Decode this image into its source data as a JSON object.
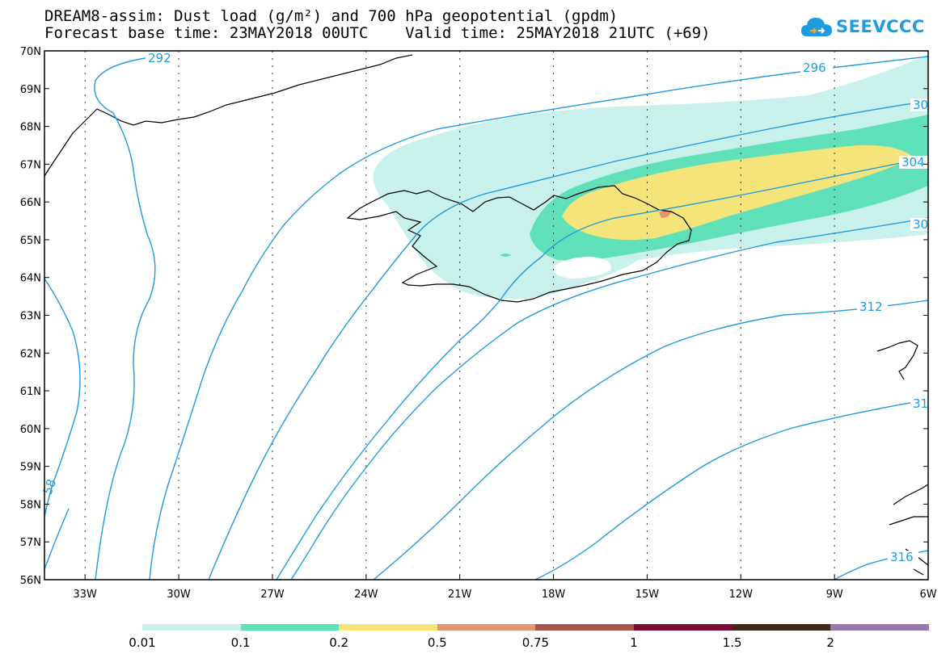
{
  "header": {
    "line1": "DREAM8-assim: Dust load (g/m²) and 700 hPa geopotential (gpdm)",
    "line2": "Forecast base time: 23MAY2018 00UTC    Valid time: 25MAY2018 21UTC (+69)"
  },
  "logo": {
    "text": "SEEVCCC",
    "icon": "cloud-icon"
  },
  "map": {
    "lat_labels": [
      "70N",
      "69N",
      "68N",
      "67N",
      "66N",
      "65N",
      "64N",
      "63N",
      "62N",
      "61N",
      "60N",
      "59N",
      "58N",
      "57N",
      "56N"
    ],
    "lon_labels": [
      "33W",
      "30W",
      "27W",
      "24W",
      "21W",
      "18W",
      "15W",
      "12W",
      "9W",
      "6W"
    ],
    "lat_range": [
      56,
      70
    ],
    "lon_range": [
      -34.3,
      -6
    ],
    "contour_color": "#1f9be0",
    "contour_labels": [
      "292",
      "296",
      "30",
      "304",
      "30",
      "312",
      "31",
      "316",
      "58"
    ]
  },
  "legend": {
    "labels": [
      "0.01",
      "0.1",
      "0.2",
      "0.5",
      "0.75",
      "1",
      "1.5",
      "2"
    ],
    "colors": [
      "#c8f1ec",
      "#5fe0b9",
      "#f5e47a",
      "#e6956a",
      "#a9554a",
      "#7a0d33",
      "#3e2a14",
      "#9a76b2"
    ]
  }
}
